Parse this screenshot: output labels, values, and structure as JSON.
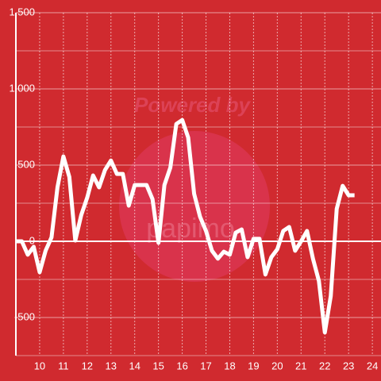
{
  "chart_data": {
    "type": "line",
    "watermark": "Powered by",
    "watermark_logo": "papimo",
    "x": [
      9,
      9.25,
      9.5,
      9.75,
      10,
      10.25,
      10.5,
      10.75,
      11,
      11.25,
      11.5,
      11.75,
      12,
      12.25,
      12.5,
      12.75,
      13,
      13.25,
      13.5,
      13.75,
      14,
      14.25,
      14.5,
      14.75,
      15,
      15.25,
      15.5,
      15.75,
      16,
      16.25,
      16.5,
      16.75,
      17,
      17.25,
      17.5,
      17.75,
      18,
      18.25,
      18.5,
      18.75,
      19,
      19.25,
      19.5,
      19.75,
      20,
      20.25,
      20.5,
      20.75,
      21,
      21.25,
      21.5,
      21.75,
      22,
      22.25,
      22.5,
      22.75,
      23,
      23.25
    ],
    "series": [
      {
        "color": "#ffffff",
        "values": [
          0,
          0,
          -88,
          -36,
          -203,
          -62,
          26,
          354,
          557,
          422,
          5,
          172,
          286,
          432,
          354,
          468,
          530,
          442,
          442,
          234,
          369,
          369,
          369,
          276,
          -10,
          369,
          484,
          770,
          796,
          681,
          312,
          161,
          68,
          -62,
          -114,
          -68,
          -88,
          57,
          78,
          -104,
          16,
          16,
          -218,
          -104,
          -52,
          68,
          94,
          -62,
          0,
          68,
          -114,
          -260,
          -598,
          -359,
          213,
          364,
          302,
          302
        ]
      }
    ],
    "xlim": [
      9,
      24.33
    ],
    "xticks": [
      10,
      11,
      12,
      13,
      14,
      15,
      16,
      17,
      18,
      19,
      20,
      21,
      22,
      23,
      24
    ],
    "ylim": [
      -750,
      1500
    ],
    "yticks": [
      -500,
      0,
      500,
      {
        "value": 1000,
        "label": "1,000"
      },
      {
        "value": 1500,
        "label": "1,500"
      }
    ],
    "grid": true
  }
}
